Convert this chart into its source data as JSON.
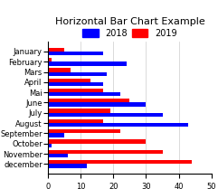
{
  "title": "Horizontal Bar Chart Example",
  "categories": [
    "January",
    "February",
    "Mars",
    "April",
    "Mai",
    "June",
    "July",
    "August",
    "September",
    "October",
    "November",
    "december"
  ],
  "values_2018": [
    17,
    24,
    18,
    17,
    22,
    30,
    35,
    43,
    5,
    1,
    6,
    12
  ],
  "values_2019": [
    5,
    1,
    7,
    13,
    17,
    25,
    19,
    17,
    22,
    30,
    35,
    44
  ],
  "color_2018": "#0000ff",
  "color_2019": "#ff0000",
  "legend_2018": "2018",
  "legend_2019": "2019",
  "xlim": [
    0,
    50
  ],
  "xticks": [
    0,
    10,
    20,
    30,
    40,
    50
  ],
  "bar_height": 0.38,
  "background_color": "#ffffff",
  "grid_color": "#cccccc",
  "title_fontsize": 8,
  "tick_fontsize": 6,
  "legend_fontsize": 7
}
